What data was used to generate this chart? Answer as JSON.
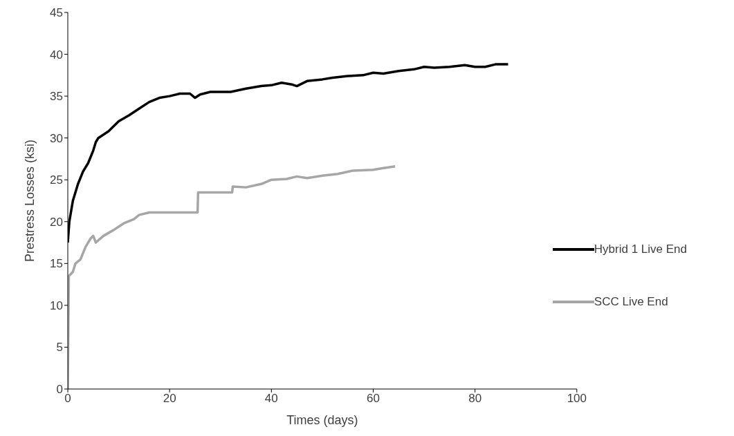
{
  "chart_data": {
    "type": "line",
    "xlabel": "Times (days)",
    "ylabel": "Prestress Losses (ksi)",
    "xlim": [
      0,
      100
    ],
    "xticks": [
      0,
      20,
      40,
      60,
      80,
      100
    ],
    "ylim": [
      0,
      45
    ],
    "yticks": [
      0,
      5,
      10,
      15,
      20,
      25,
      30,
      35,
      40,
      45
    ],
    "grid": false,
    "legend": "bottom right",
    "marker": "none",
    "line_style": "solid",
    "series": [
      {
        "name": "Hybrid 1 Live End",
        "color": "#000000",
        "x": [
          0,
          0.3,
          1,
          2,
          3,
          4,
          5,
          5.5,
          6,
          8,
          10,
          12,
          14,
          16,
          18,
          20,
          22,
          24,
          25,
          26,
          28,
          30,
          32,
          35,
          38,
          40,
          42,
          44,
          45,
          47,
          50,
          52,
          55,
          58,
          60,
          62,
          65,
          68,
          70,
          72,
          75,
          78,
          80,
          82,
          84,
          86.5
        ],
        "values": [
          17.5,
          20,
          22.5,
          24.5,
          26,
          27,
          28.5,
          29.5,
          30,
          30.8,
          32,
          32.7,
          33.5,
          34.3,
          34.8,
          35,
          35.3,
          35.3,
          34.8,
          35.2,
          35.5,
          35.5,
          35.5,
          35.9,
          36.2,
          36.3,
          36.6,
          36.4,
          36.2,
          36.8,
          37,
          37.2,
          37.4,
          37.5,
          37.8,
          37.7,
          38,
          38.2,
          38.5,
          38.4,
          38.5,
          38.7,
          38.5,
          38.5,
          38.8,
          38.8
        ]
      },
      {
        "name": "SCC Live End",
        "color": "#a6a6a6",
        "x": [
          0,
          0.2,
          1,
          1.5,
          2.5,
          3.5,
          4.5,
          5,
          5.5,
          7,
          9,
          11,
          13,
          14,
          16,
          20,
          25.5,
          25.6,
          32.3,
          32.4,
          35,
          38,
          40,
          43,
          45,
          47,
          50,
          53,
          56,
          60,
          62,
          64.3
        ],
        "values": [
          0,
          13.5,
          14,
          15,
          15.5,
          17,
          18,
          18.3,
          17.5,
          18.3,
          19,
          19.8,
          20.3,
          20.8,
          21.1,
          21.1,
          21.1,
          23.5,
          23.5,
          24.2,
          24.1,
          24.5,
          25,
          25.1,
          25.4,
          25.2,
          25.5,
          25.7,
          26.1,
          26.2,
          26.4,
          26.6
        ]
      }
    ]
  }
}
